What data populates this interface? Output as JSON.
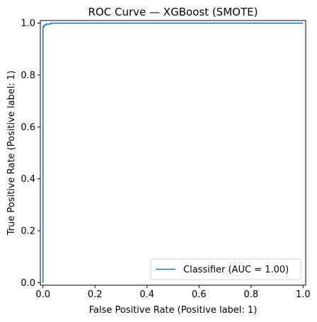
{
  "chart_data": {
    "type": "line",
    "title": "ROC Curve — XGBoost (SMOTE)",
    "xlabel": "False Positive Rate (Positive label: 1)",
    "ylabel": "True Positive Rate (Positive label: 1)",
    "xlim": [
      -0.01,
      1.01
    ],
    "ylim": [
      -0.01,
      1.01
    ],
    "x_ticks": [
      0.0,
      0.2,
      0.4,
      0.6,
      0.8,
      1.0
    ],
    "x_tick_labels": [
      "0.0",
      "0.2",
      "0.4",
      "0.6",
      "0.8",
      "1.0"
    ],
    "y_ticks": [
      0.0,
      0.2,
      0.4,
      0.6,
      0.8,
      1.0
    ],
    "y_tick_labels": [
      "0.0",
      "0.2",
      "0.4",
      "0.6",
      "0.8",
      "1.0"
    ],
    "grid": false,
    "legend_position": "lower-right",
    "series": [
      {
        "name": "Classifier (AUC = 1.00)",
        "color": "#1f77b4",
        "x": [
          0.0,
          0.0,
          0.0,
          0.004,
          0.004,
          0.012,
          0.012,
          0.03,
          0.03,
          1.0
        ],
        "y": [
          0.0,
          0.62,
          0.985,
          0.985,
          0.992,
          0.992,
          0.996,
          0.996,
          1.0,
          1.0
        ]
      }
    ]
  }
}
